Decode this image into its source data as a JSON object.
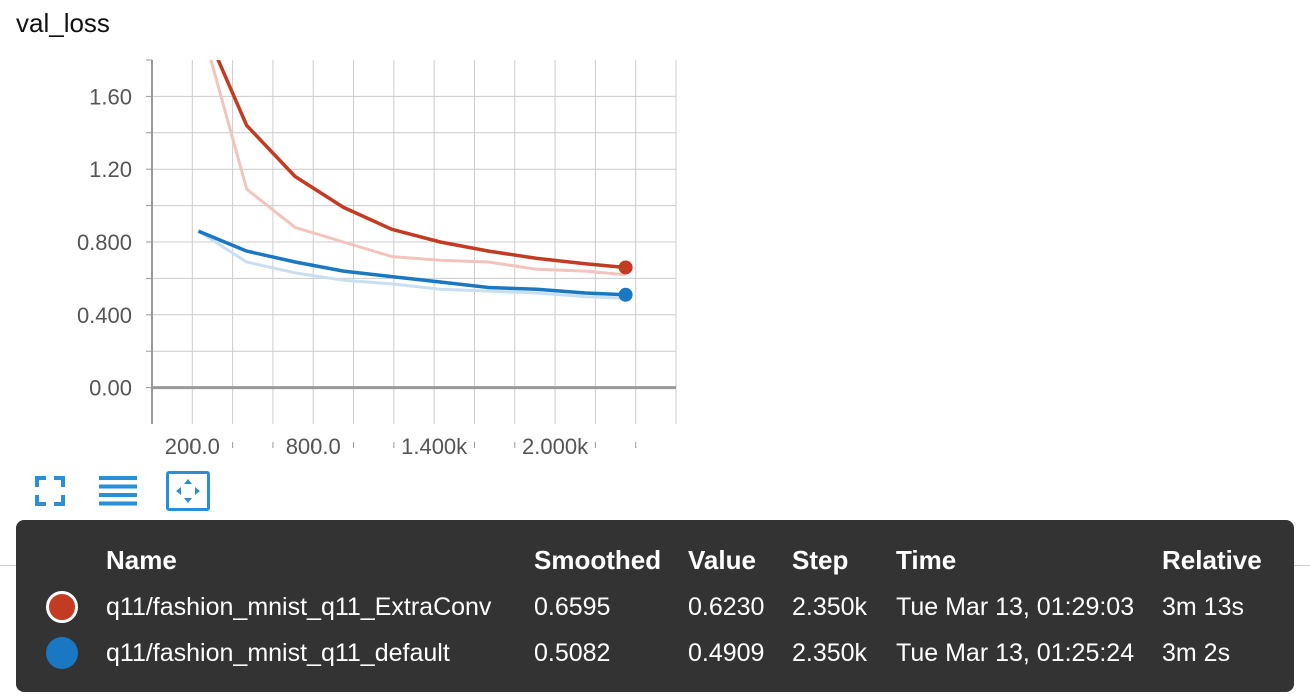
{
  "chart_data": {
    "type": "line",
    "title": "val_loss",
    "xlabel": "",
    "ylabel": "",
    "xlim": [
      0,
      2600
    ],
    "ylim": [
      -0.2,
      1.8
    ],
    "x_ticks": [
      200,
      800,
      1400,
      2000
    ],
    "x_tick_labels": [
      "200.0",
      "800.0",
      "1.400k",
      "2.000k"
    ],
    "y_ticks": [
      0,
      0.4,
      0.8,
      1.2,
      1.6
    ],
    "y_tick_labels": [
      "0.00",
      "0.400",
      "0.800",
      "1.20",
      "1.60"
    ],
    "grid": true,
    "series": [
      {
        "name": "q11/fashion_mnist_q11_ExtraConv",
        "color": "#c23b22",
        "raw_color": "#f2c4bd",
        "x_smoothed": [
          230,
          470,
          710,
          950,
          1190,
          1430,
          1670,
          1910,
          2150,
          2350
        ],
        "smoothed": [
          2.05,
          1.44,
          1.16,
          0.99,
          0.87,
          0.8,
          0.75,
          0.71,
          0.68,
          0.66
        ],
        "x_raw": [
          230,
          470,
          710,
          950,
          1190,
          1430,
          1670,
          1910,
          2150,
          2350
        ],
        "raw": [
          2.05,
          1.09,
          0.88,
          0.8,
          0.72,
          0.7,
          0.69,
          0.65,
          0.64,
          0.62
        ]
      },
      {
        "name": "q11/fashion_mnist_q11_default",
        "color": "#1a78c2",
        "raw_color": "#c9def0",
        "x_smoothed": [
          230,
          470,
          710,
          950,
          1190,
          1430,
          1670,
          1910,
          2150,
          2350
        ],
        "smoothed": [
          0.86,
          0.75,
          0.69,
          0.64,
          0.61,
          0.58,
          0.55,
          0.54,
          0.52,
          0.51
        ],
        "x_raw": [
          230,
          470,
          710,
          950,
          1190,
          1430,
          1670,
          1910,
          2150,
          2350
        ],
        "raw": [
          0.86,
          0.69,
          0.63,
          0.59,
          0.57,
          0.54,
          0.53,
          0.52,
          0.5,
          0.49
        ]
      }
    ]
  },
  "toolbar": {
    "icons": [
      "fullscreen-icon",
      "list-icon",
      "fit-domain-icon"
    ],
    "accent": "#2b8fd8"
  },
  "tooltip": {
    "headers": {
      "name": "Name",
      "smoothed": "Smoothed",
      "value": "Value",
      "step": "Step",
      "time": "Time",
      "relative": "Relative"
    },
    "rows": [
      {
        "color": "#c23b22",
        "name": "q11/fashion_mnist_q11_ExtraConv",
        "smoothed": "0.6595",
        "value": "0.6230",
        "step": "2.350k",
        "time": "Tue Mar 13, 01:29:03",
        "relative": "3m 13s"
      },
      {
        "color": "#1a78c2",
        "name": "q11/fashion_mnist_q11_default",
        "smoothed": "0.5082",
        "value": "0.4909",
        "step": "2.350k",
        "time": "Tue Mar 13, 01:25:24",
        "relative": "3m 2s"
      }
    ]
  }
}
